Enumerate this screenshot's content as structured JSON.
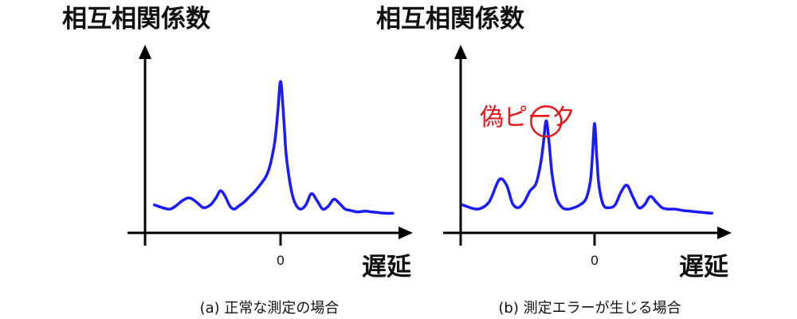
{
  "colors": {
    "axis": "#000000",
    "curve": "#1a1aff",
    "highlight": "#e8141a",
    "text": "#111111"
  },
  "chart_data": [
    {
      "type": "line",
      "ylabel": "相互相関係数",
      "xlabel": "遅延",
      "x_tick_label": "0",
      "caption": "(a) 正常な測定の場合",
      "xlim": [
        -9,
        8
      ],
      "ylim": [
        0,
        1
      ],
      "x": [
        -9,
        -8,
        -7.5,
        -7,
        -6.5,
        -6,
        -5.5,
        -5,
        -4.6,
        -4.3,
        -4,
        -3.6,
        -3.3,
        -3,
        -2.6,
        -2.2,
        -1.8,
        -1.4,
        -1,
        -0.7,
        -0.4,
        -0.2,
        0,
        0.2,
        0.4,
        0.7,
        1,
        1.4,
        1.8,
        2.2,
        2.6,
        3,
        3.4,
        3.8,
        4.2,
        4.6,
        5,
        5.5,
        6,
        6.5,
        7,
        7.5,
        8
      ],
      "y": [
        0.12,
        0.09,
        0.11,
        0.15,
        0.17,
        0.14,
        0.1,
        0.12,
        0.17,
        0.22,
        0.19,
        0.11,
        0.09,
        0.11,
        0.14,
        0.18,
        0.22,
        0.27,
        0.33,
        0.42,
        0.58,
        0.78,
        1.0,
        0.78,
        0.48,
        0.26,
        0.14,
        0.09,
        0.12,
        0.2,
        0.15,
        0.09,
        0.11,
        0.16,
        0.13,
        0.09,
        0.08,
        0.07,
        0.075,
        0.07,
        0.065,
        0.06,
        0.06
      ]
    },
    {
      "type": "line",
      "ylabel": "相互相関係数",
      "xlabel": "遅延",
      "x_tick_label": "0",
      "caption": "(b) 測定エラーが生じる場合",
      "annotation": "偽ピーク",
      "xlim": [
        -9,
        8
      ],
      "ylim": [
        0,
        1
      ],
      "x": [
        -9,
        -8,
        -7.2,
        -6.5,
        -6,
        -5.6,
        -5.2,
        -4.8,
        -4.4,
        -4,
        -3.7,
        -3.5,
        -3.3,
        -3.1,
        -2.9,
        -2.6,
        -2.2,
        -1.8,
        -1.4,
        -1,
        -0.6,
        -0.3,
        -0.15,
        0,
        0.15,
        0.3,
        0.6,
        1,
        1.4,
        1.8,
        2.2,
        2.6,
        3,
        3.4,
        3.8,
        4.2,
        4.6,
        5,
        5.5,
        6,
        6.5,
        7,
        7.5,
        8
      ],
      "y": [
        0.12,
        0.09,
        0.14,
        0.3,
        0.26,
        0.13,
        0.1,
        0.14,
        0.22,
        0.27,
        0.4,
        0.55,
        0.72,
        0.56,
        0.34,
        0.17,
        0.1,
        0.09,
        0.1,
        0.12,
        0.16,
        0.28,
        0.46,
        0.7,
        0.46,
        0.26,
        0.12,
        0.1,
        0.12,
        0.21,
        0.26,
        0.18,
        0.1,
        0.12,
        0.18,
        0.14,
        0.1,
        0.09,
        0.09,
        0.08,
        0.075,
        0.07,
        0.065,
        0.06
      ],
      "false_peak_x": -3.3,
      "false_peak_y": 0.72
    }
  ]
}
